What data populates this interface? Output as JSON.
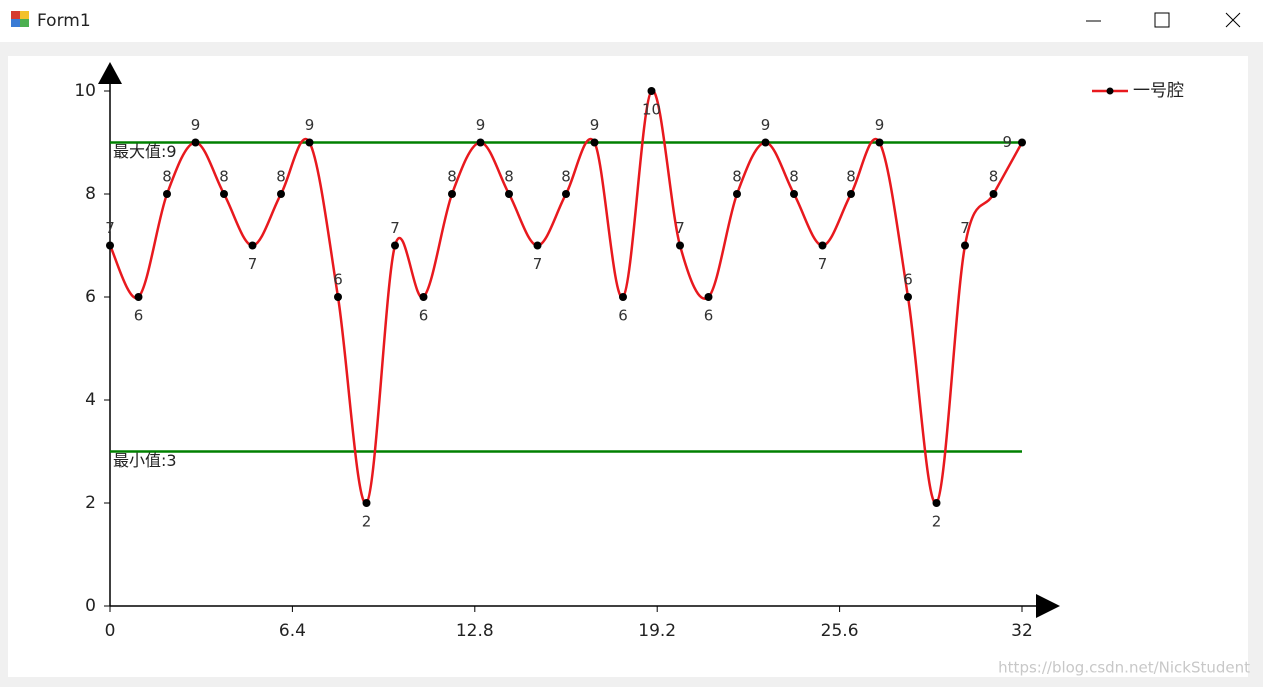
{
  "window": {
    "title": "Form1"
  },
  "chart_data": {
    "type": "line",
    "x": [
      0,
      1,
      2,
      3,
      4,
      5,
      6,
      7,
      8,
      9,
      10,
      11,
      12,
      13,
      14,
      15,
      16,
      17,
      18,
      19,
      20,
      21,
      22,
      23,
      24,
      25,
      26,
      27,
      28,
      29,
      30,
      31,
      32
    ],
    "series": [
      {
        "name": "一号腔",
        "color": "#e8191e",
        "marker_color": "#000000",
        "values": [
          7,
          6,
          8,
          9,
          8,
          7,
          8,
          9,
          6,
          2,
          7,
          6,
          8,
          9,
          8,
          7,
          8,
          9,
          6,
          10,
          7,
          6,
          8,
          9,
          8,
          7,
          8,
          9,
          6,
          2,
          7,
          8,
          9
        ]
      }
    ],
    "xlim": [
      0,
      32
    ],
    "ylim": [
      0,
      10
    ],
    "xticks": [
      0,
      6.4,
      12.8,
      19.2,
      25.6,
      32
    ],
    "yticks": [
      0,
      2,
      4,
      6,
      8,
      10
    ],
    "reference_lines": [
      {
        "value": 9,
        "label": "最大值:9",
        "color": "#008000"
      },
      {
        "value": 3,
        "label": "最小值:3",
        "color": "#008000"
      }
    ],
    "legend": "top-right",
    "smooth": true
  },
  "watermark": "https://blog.csdn.net/NickStudent"
}
